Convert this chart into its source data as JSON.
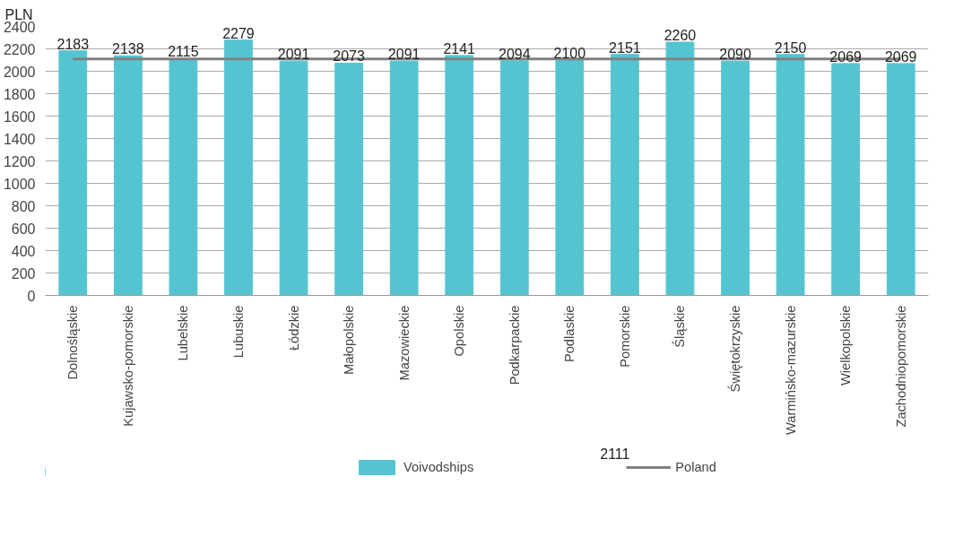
{
  "chart_data": {
    "type": "bar",
    "ylabel": "PLN",
    "categories": [
      "Dolnośląskie",
      "Kujawsko-pomorskie",
      "Lubelskie",
      "Lubuskie",
      "Łódzkie",
      "Małopolskie",
      "Mazowieckie",
      "Opolskie",
      "Podkarpackie",
      "Podlaskie",
      "Pomorskie",
      "Śląskie",
      "Świętokrzyskie",
      "Warmińsko-mazurskie",
      "Wielkopolskie",
      "Zachodniopomorskie"
    ],
    "series": [
      {
        "name": "Voivodships",
        "color": "#54c5d0",
        "values": [
          2183,
          2138,
          2115,
          2279,
          2091,
          2073,
          2091,
          2141,
          2094,
          2100,
          2151,
          2260,
          2090,
          2150,
          2069,
          2069
        ]
      }
    ],
    "ylim": [
      0,
      2400
    ],
    "yticks": [
      0,
      200,
      400,
      600,
      800,
      1000,
      1200,
      1400,
      1600,
      1800,
      2000,
      2200,
      2400
    ],
    "grid": "y",
    "data_labels": true,
    "legend": "bottom",
    "ref_lines": [
      {
        "axis": "y",
        "value": 2111,
        "label": "Poland",
        "color": "#808080"
      }
    ],
    "annotations": [
      "2111"
    ]
  }
}
